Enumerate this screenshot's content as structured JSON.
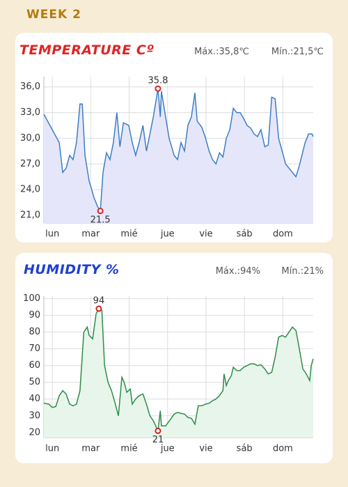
{
  "header": "WEEK 2",
  "chart_data": [
    {
      "type": "line",
      "title": "TEMPERATURE Cº",
      "max_text": "Máx.:35,8℃",
      "min_text": "Mín.:21,5℃",
      "color": "#3b7fc2",
      "fill": "#e6e6fb",
      "grid": true,
      "xlim": [
        -0.22,
        6.79
      ],
      "ylim": [
        20.1,
        37.2
      ],
      "xticks": [
        {
          "value": 0,
          "label": "lun"
        },
        {
          "value": 1,
          "label": "mar"
        },
        {
          "value": 2,
          "label": "mié"
        },
        {
          "value": 3,
          "label": "jue"
        },
        {
          "value": 4,
          "label": "vie"
        },
        {
          "value": 5,
          "label": "sáb"
        },
        {
          "value": 6,
          "label": "dom"
        }
      ],
      "yticks": [
        {
          "value": 21,
          "label": "21,0"
        },
        {
          "value": 24,
          "label": "24,0"
        },
        {
          "value": 27,
          "label": "27,0"
        },
        {
          "value": 30,
          "label": "30,0"
        },
        {
          "value": 33,
          "label": "33,0"
        },
        {
          "value": 36,
          "label": "36,0"
        }
      ],
      "x": [
        -0.22,
        0,
        0.18,
        0.27,
        0.36,
        0.45,
        0.54,
        0.63,
        0.72,
        0.78,
        0.85,
        0.96,
        1.09,
        1.18,
        1.25,
        1.32,
        1.41,
        1.5,
        1.59,
        1.68,
        1.76,
        1.85,
        1.99,
        2.08,
        2.17,
        2.26,
        2.36,
        2.45,
        2.54,
        2.63,
        2.75,
        2.81,
        2.84,
        2.93,
        3.04,
        3.17,
        3.26,
        3.35,
        3.44,
        3.53,
        3.62,
        3.71,
        3.77,
        3.89,
        3.99,
        4.08,
        4.17,
        4.26,
        4.35,
        4.44,
        4.53,
        4.62,
        4.71,
        4.8,
        4.89,
        4.98,
        5.07,
        5.16,
        5.25,
        5.34,
        5.43,
        5.53,
        5.62,
        5.71,
        5.8,
        5.89,
        5.98,
        6.07,
        6.25,
        6.34,
        6.43,
        6.58,
        6.67,
        6.76,
        6.79
      ],
      "values": [
        32.8,
        31,
        29.5,
        26,
        26.5,
        28,
        27.5,
        29.5,
        34,
        34,
        28,
        25,
        23,
        22,
        21.5,
        26,
        28.3,
        27.5,
        29.5,
        33,
        29,
        31.8,
        31.5,
        29.5,
        28,
        29.5,
        31.5,
        28.5,
        30.5,
        32.5,
        35.8,
        32.5,
        35.5,
        33,
        30,
        28,
        27.5,
        29.5,
        28.5,
        31.5,
        32.5,
        35.3,
        32,
        31.3,
        30,
        28.5,
        27.5,
        27,
        28.3,
        27.8,
        30,
        31,
        33.5,
        33,
        33,
        32.3,
        31.5,
        31.2,
        30.5,
        30.2,
        31,
        29,
        29.2,
        34.8,
        34.6,
        30,
        28.5,
        27,
        26,
        25.5,
        26.8,
        29.5,
        30.5,
        30.5,
        30.2
      ],
      "max_point": {
        "x": 2.75,
        "y": 35.8
      },
      "min_point": {
        "x": 1.25,
        "y": 21.5
      }
    },
    {
      "type": "line",
      "title": "HUMIDITY %",
      "max_text": "Máx.:94%",
      "min_text": "Mín.:21%",
      "color": "#2e8b4a",
      "fill": "#e7f5ea",
      "grid": true,
      "xlim": [
        -0.22,
        6.79
      ],
      "ylim": [
        17,
        101.5
      ],
      "xticks": [
        {
          "value": 0,
          "label": "lun"
        },
        {
          "value": 1,
          "label": "mar"
        },
        {
          "value": 2,
          "label": "mié"
        },
        {
          "value": 3,
          "label": "jue"
        },
        {
          "value": 4,
          "label": "vie"
        },
        {
          "value": 5,
          "label": "sáb"
        },
        {
          "value": 6,
          "label": "dom"
        }
      ],
      "yticks": [
        20,
        30,
        40,
        50,
        60,
        70,
        80,
        90,
        100
      ],
      "x": [
        -0.22,
        -0.09,
        0,
        0.09,
        0.18,
        0.27,
        0.36,
        0.45,
        0.54,
        0.63,
        0.72,
        0.82,
        0.91,
        0.96,
        1.05,
        1.14,
        1.21,
        1.29,
        1.36,
        1.45,
        1.54,
        1.63,
        1.72,
        1.81,
        1.87,
        1.94,
        2.03,
        2.08,
        2.17,
        2.26,
        2.36,
        2.45,
        2.54,
        2.63,
        2.75,
        2.81,
        2.84,
        2.95,
        3.08,
        3.17,
        3.26,
        3.44,
        3.53,
        3.62,
        3.71,
        3.8,
        3.89,
        3.99,
        4.08,
        4.17,
        4.26,
        4.35,
        4.44,
        4.47,
        4.53,
        4.58,
        4.66,
        4.71,
        4.8,
        4.89,
        4.98,
        5.07,
        5.16,
        5.25,
        5.34,
        5.43,
        5.53,
        5.62,
        5.71,
        5.8,
        5.89,
        5.98,
        6.07,
        6.16,
        6.25,
        6.34,
        6.43,
        6.52,
        6.61,
        6.7,
        6.74,
        6.79
      ],
      "values": [
        37.5,
        37,
        35,
        35.5,
        42,
        45,
        43,
        37,
        36,
        37,
        45,
        80,
        83,
        78,
        76,
        91,
        94,
        93,
        60,
        50,
        45,
        38,
        30,
        53,
        50,
        44,
        46,
        37,
        40,
        42,
        43,
        37,
        30,
        27,
        21,
        33,
        24,
        24,
        28,
        31,
        32,
        31,
        29,
        28.5,
        25,
        36,
        36,
        37,
        37.5,
        39,
        40,
        42,
        45,
        55,
        48,
        51,
        54,
        59,
        57,
        57,
        59,
        60,
        61,
        61,
        60,
        60.5,
        58,
        55,
        56,
        65,
        77,
        78,
        77,
        80,
        83,
        81,
        70,
        58,
        55,
        51,
        60,
        64
      ],
      "max_point": {
        "x": 1.21,
        "y": 94
      },
      "min_point": {
        "x": 2.75,
        "y": 21
      }
    }
  ]
}
